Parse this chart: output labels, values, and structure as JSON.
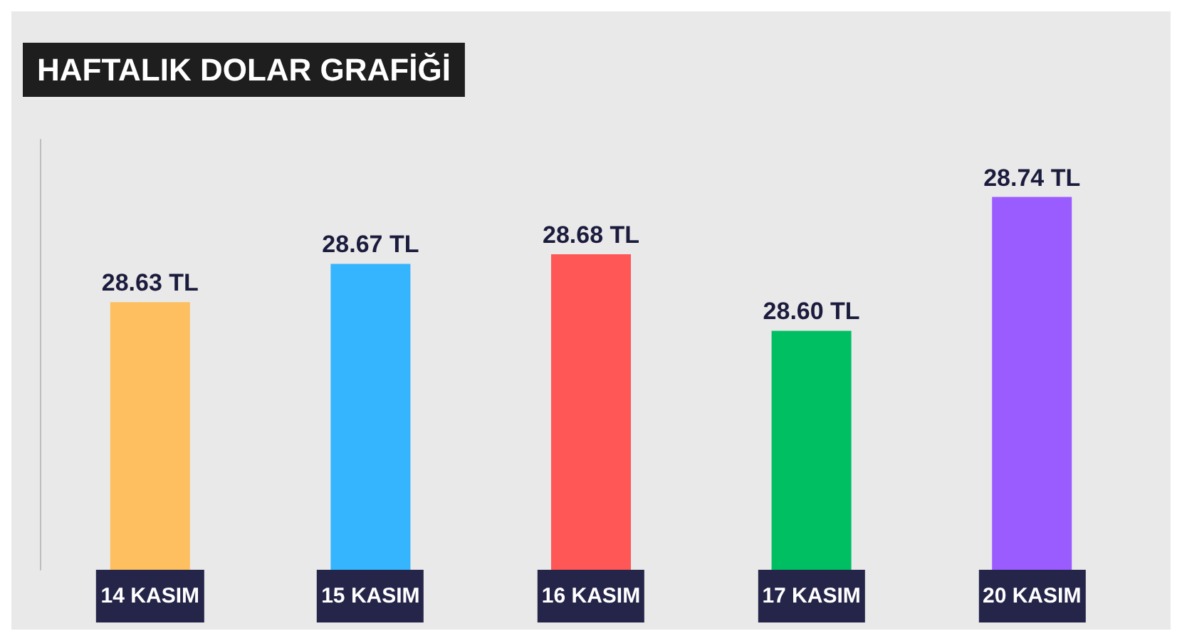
{
  "chart_data": {
    "type": "bar",
    "title": "HAFTALIK DOLAR GRAFİĞİ",
    "categories": [
      "14 KASIM",
      "15 KASIM",
      "16 KASIM",
      "17 KASIM",
      "20 KASIM"
    ],
    "values": [
      28.63,
      28.67,
      28.68,
      28.6,
      28.74
    ],
    "value_labels": [
      "28.63 TL",
      "28.67 TL",
      "28.68 TL",
      "28.60 TL",
      "28.74 TL"
    ],
    "colors": [
      "#fdbf5f",
      "#36b5ff",
      "#ff5656",
      "#00bf63",
      "#9b5cff"
    ],
    "ylim": [
      28.35,
      28.8
    ],
    "tick_labels": "x",
    "grid": false
  }
}
